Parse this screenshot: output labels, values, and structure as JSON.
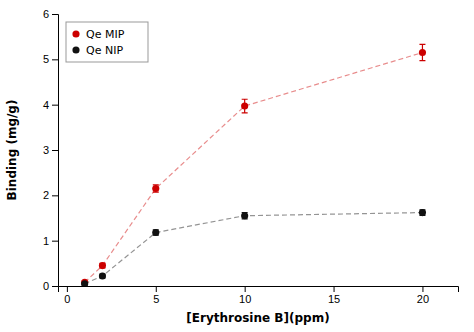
{
  "chart_data": {
    "type": "line",
    "x_label": "[Erythrosine B](ppm)",
    "y_label": "Binding (mg/g)",
    "x": [
      1,
      2,
      5,
      10,
      20
    ],
    "xlim": [
      -0.5,
      22
    ],
    "ylim": [
      0,
      6
    ],
    "xticks": [
      0,
      5,
      10,
      15,
      20
    ],
    "yticks": [
      0,
      1,
      2,
      3,
      4,
      5,
      6
    ],
    "grid": false,
    "legend": "upper left",
    "line_style": "dashed",
    "marker": "circle",
    "series": [
      {
        "name": "Qe MIP",
        "color": "#cc0000",
        "values": [
          0.08,
          0.45,
          2.15,
          3.97,
          5.15
        ],
        "yerr": [
          0.02,
          0.05,
          0.08,
          0.15,
          0.18
        ]
      },
      {
        "name": "Qe NIP",
        "color": "#111111",
        "values": [
          0.05,
          0.22,
          1.18,
          1.55,
          1.62
        ],
        "yerr": [
          0.02,
          0.04,
          0.06,
          0.07,
          0.06
        ]
      }
    ]
  }
}
